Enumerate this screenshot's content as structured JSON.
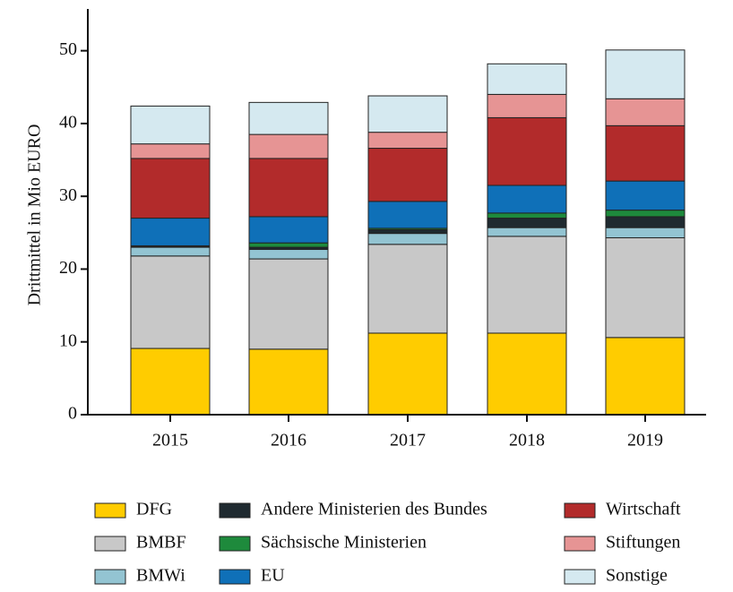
{
  "chart_data": {
    "type": "stacked_bar",
    "y_label": "Drittmittel in Mio EURO",
    "categories": [
      "2015",
      "2016",
      "2017",
      "2018",
      "2019"
    ],
    "series": [
      {
        "name": "DFG",
        "color": "#FFCC00",
        "values": [
          9.1,
          9.0,
          11.2,
          11.2,
          10.6
        ]
      },
      {
        "name": "BMBF",
        "color": "#C8C8C8",
        "values": [
          12.7,
          12.4,
          12.2,
          13.3,
          13.7
        ]
      },
      {
        "name": "BMWi",
        "color": "#93C4D2",
        "values": [
          1.2,
          1.3,
          1.5,
          1.2,
          1.4
        ]
      },
      {
        "name": "Andere Ministerien des Bundes",
        "color": "#1F2A30",
        "values": [
          0.1,
          0.3,
          0.5,
          1.3,
          1.5
        ]
      },
      {
        "name": "Sächsische Ministerien",
        "color": "#1E8A3C",
        "values": [
          0.1,
          0.6,
          0.2,
          0.7,
          0.9
        ]
      },
      {
        "name": "EU",
        "color": "#0F70B8",
        "values": [
          3.8,
          3.6,
          3.7,
          3.8,
          4.0
        ]
      },
      {
        "name": "Wirtschaft",
        "color": "#B22B2B",
        "values": [
          8.2,
          8.0,
          7.3,
          9.3,
          7.6
        ]
      },
      {
        "name": "Stiftungen",
        "color": "#E69494",
        "values": [
          2.0,
          3.3,
          2.2,
          3.2,
          3.7
        ]
      },
      {
        "name": "Sonstige",
        "color": "#D5E9F0",
        "values": [
          5.2,
          4.4,
          5.0,
          4.2,
          6.7
        ]
      }
    ],
    "ylim": [
      0,
      55
    ],
    "yticks": [
      0,
      10,
      20,
      30,
      40,
      50
    ]
  }
}
